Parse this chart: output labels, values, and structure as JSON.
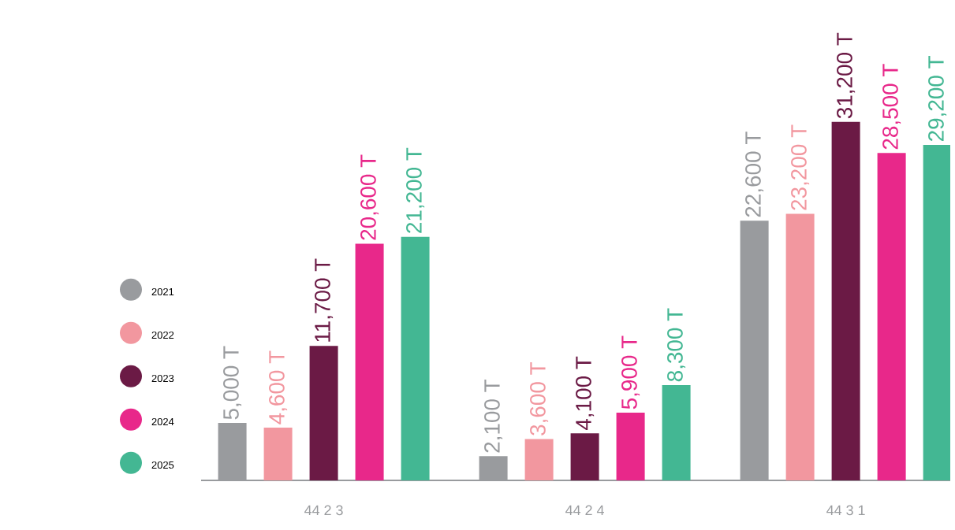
{
  "chart_data": {
    "type": "bar",
    "categories": [
      "44 2 3",
      "44 2 4",
      "44 3 1"
    ],
    "legend": "left",
    "series": [
      {
        "name": "2021",
        "color": "#999b9e",
        "values": [
          5000,
          2100,
          22600
        ],
        "value_labels": [
          "5,000 T",
          "2,100 T",
          "22,600 T"
        ]
      },
      {
        "name": "2022",
        "color": "#f2979f",
        "values": [
          4600,
          3600,
          23200
        ],
        "value_labels": [
          "4,600 T",
          "3,600 T",
          "23,200 T"
        ]
      },
      {
        "name": "2023",
        "color": "#6b1a45",
        "values": [
          11700,
          4100,
          31200
        ],
        "value_labels": [
          "11,700 T",
          "4,100 T",
          "31,200 T"
        ]
      },
      {
        "name": "2024",
        "color": "#e8288a",
        "values": [
          20600,
          5900,
          28500
        ],
        "value_labels": [
          "20,600 T",
          "5,900 T",
          "28,500 T"
        ]
      },
      {
        "name": "2025",
        "color": "#43b793",
        "values": [
          21200,
          8300,
          29200
        ],
        "value_labels": [
          "21,200 T",
          "8,300 T",
          "29,200 T"
        ]
      }
    ]
  }
}
